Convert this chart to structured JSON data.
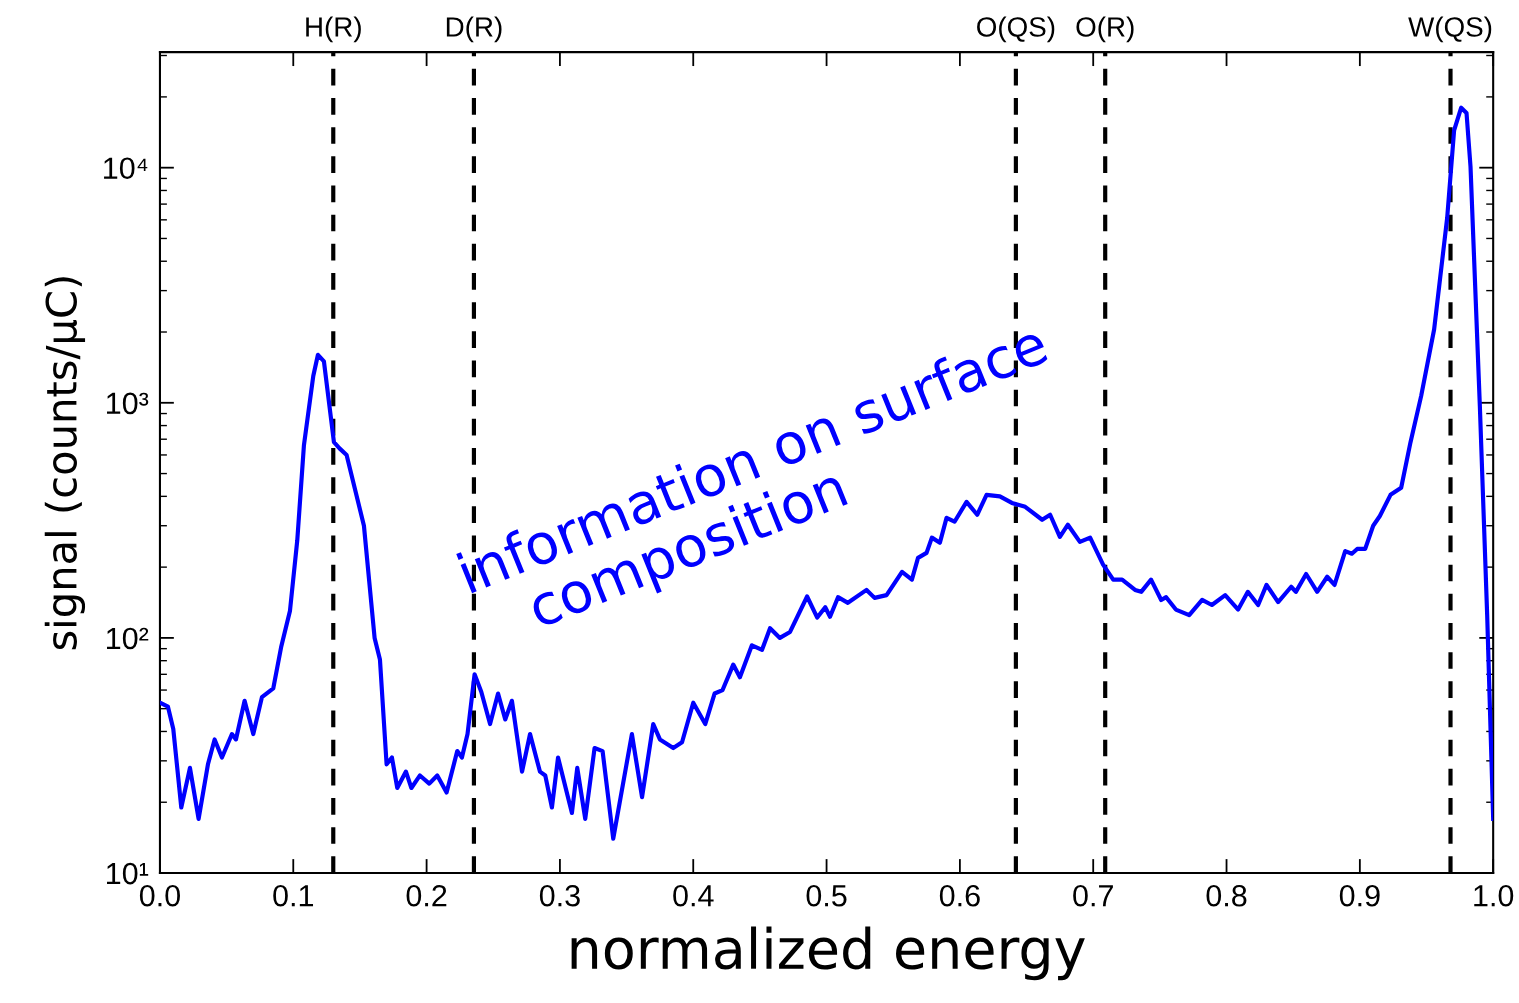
{
  "chart_data": {
    "type": "line",
    "xlabel": "normalized energy",
    "ylabel": "signal (counts/μC)",
    "log": "y",
    "grid": false,
    "legend": false,
    "marker": "none",
    "line_style": "solid",
    "xlim": [
      0,
      1
    ],
    "ylim": [
      10,
      31000
    ],
    "xticks": [
      {
        "value": 0,
        "label": "0.0"
      },
      0.1,
      0.2,
      0.3,
      0.4,
      0.5,
      0.6,
      0.7,
      0.8,
      0.9,
      {
        "value": 1,
        "label": "1.0"
      }
    ],
    "yticks": [
      {
        "value": 10,
        "label": "10¹"
      },
      {
        "value": 100,
        "label": "10²"
      },
      {
        "value": 1000,
        "label": "10³"
      },
      {
        "value": 10000,
        "label": "10⁴"
      }
    ],
    "ref_lines": [
      {
        "axis": "x",
        "value": 0.13,
        "label": "H(R)",
        "color": "#000000",
        "line_style": "dashed"
      },
      {
        "axis": "x",
        "value": 0.2355,
        "label": "D(R)",
        "color": "#000000",
        "line_style": "dashed"
      },
      {
        "axis": "x",
        "value": 0.642,
        "label": "O(QS)",
        "color": "#000000",
        "line_style": "dashed"
      },
      {
        "axis": "x",
        "value": 0.709,
        "label": "O(R)",
        "color": "#000000",
        "line_style": "dashed"
      },
      {
        "axis": "x",
        "value": 0.968,
        "label": "W(QS)",
        "color": "#000000",
        "line_style": "dashed"
      }
    ],
    "annotations": [
      "information on surface\n   composition"
    ],
    "series": [
      {
        "color": "#0000ff",
        "x": [
          0.0,
          0.006,
          0.01,
          0.016,
          0.0225,
          0.029,
          0.036,
          0.041,
          0.0465,
          0.054,
          0.057,
          0.0635,
          0.07,
          0.0765,
          0.085,
          0.091,
          0.0975,
          0.103,
          0.108,
          0.115,
          0.1185,
          0.123,
          0.1305,
          0.1347,
          0.14,
          0.153,
          0.161,
          0.165,
          0.17,
          0.174,
          0.178,
          0.1845,
          0.1886,
          0.195,
          0.202,
          0.208,
          0.215,
          0.223,
          0.2265,
          0.2307,
          0.236,
          0.241,
          0.2476,
          0.2536,
          0.259,
          0.264,
          0.2716,
          0.2776,
          0.285,
          0.289,
          0.294,
          0.2986,
          0.309,
          0.313,
          0.319,
          0.326,
          0.332,
          0.34,
          0.354,
          0.3616,
          0.37,
          0.375,
          0.385,
          0.3916,
          0.4,
          0.409,
          0.416,
          0.422,
          0.43,
          0.435,
          0.444,
          0.4516,
          0.4576,
          0.465,
          0.4726,
          0.4854,
          0.493,
          0.499,
          0.5026,
          0.5086,
          0.516,
          0.53,
          0.536,
          0.545,
          0.5566,
          0.564,
          0.5686,
          0.575,
          0.579,
          0.585,
          0.59,
          0.596,
          0.605,
          0.613,
          0.62,
          0.63,
          0.639,
          0.649,
          0.6617,
          0.6677,
          0.675,
          0.681,
          0.69,
          0.6977,
          0.7074,
          0.715,
          0.7217,
          0.7314,
          0.736,
          0.7434,
          0.751,
          0.7547,
          0.762,
          0.772,
          0.7817,
          0.789,
          0.799,
          0.8087,
          0.816,
          0.8237,
          0.83,
          0.8387,
          0.8485,
          0.852,
          0.8597,
          0.868,
          0.8755,
          0.881,
          0.889,
          0.894,
          0.898,
          0.904,
          0.91,
          0.915,
          0.923,
          0.931,
          0.938,
          0.946,
          0.9557,
          0.9655,
          0.9707,
          0.976,
          0.98,
          0.983,
          0.99,
          0.9955,
          1.0
        ],
        "values": [
          53,
          51,
          41,
          19,
          28,
          17,
          29,
          37,
          31,
          39,
          37,
          54,
          39,
          56,
          61,
          92,
          130,
          260,
          660,
          1300,
          1600,
          1500,
          680,
          640,
          600,
          300,
          100,
          81,
          29,
          31,
          23,
          27,
          23,
          26,
          24,
          26,
          22,
          33,
          31,
          39,
          70,
          59,
          43,
          58,
          45,
          54,
          27,
          39,
          27,
          26,
          19,
          31,
          18,
          28,
          17,
          34,
          33,
          14,
          39,
          21,
          43,
          37,
          34,
          36,
          53,
          43,
          58,
          60,
          77,
          68,
          93,
          89,
          110,
          100,
          106,
          150,
          122,
          135,
          123,
          149,
          141,
          160,
          148,
          152,
          191,
          177,
          219,
          230,
          267,
          254,
          324,
          312,
          379,
          334,
          406,
          400,
          375,
          361,
          318,
          334,
          269,
          303,
          256,
          267,
          205,
          177,
          177,
          160,
          157,
          177,
          145,
          149,
          132,
          125,
          145,
          138,
          152,
          132,
          157,
          138,
          168,
          142,
          165,
          157,
          187,
          157,
          182,
          168,
          234,
          228,
          239,
          239,
          300,
          330,
          406,
          435,
          680,
          1070,
          2050,
          6120,
          14400,
          18000,
          17100,
          10100,
          970,
          125,
          17
        ]
      }
    ]
  }
}
